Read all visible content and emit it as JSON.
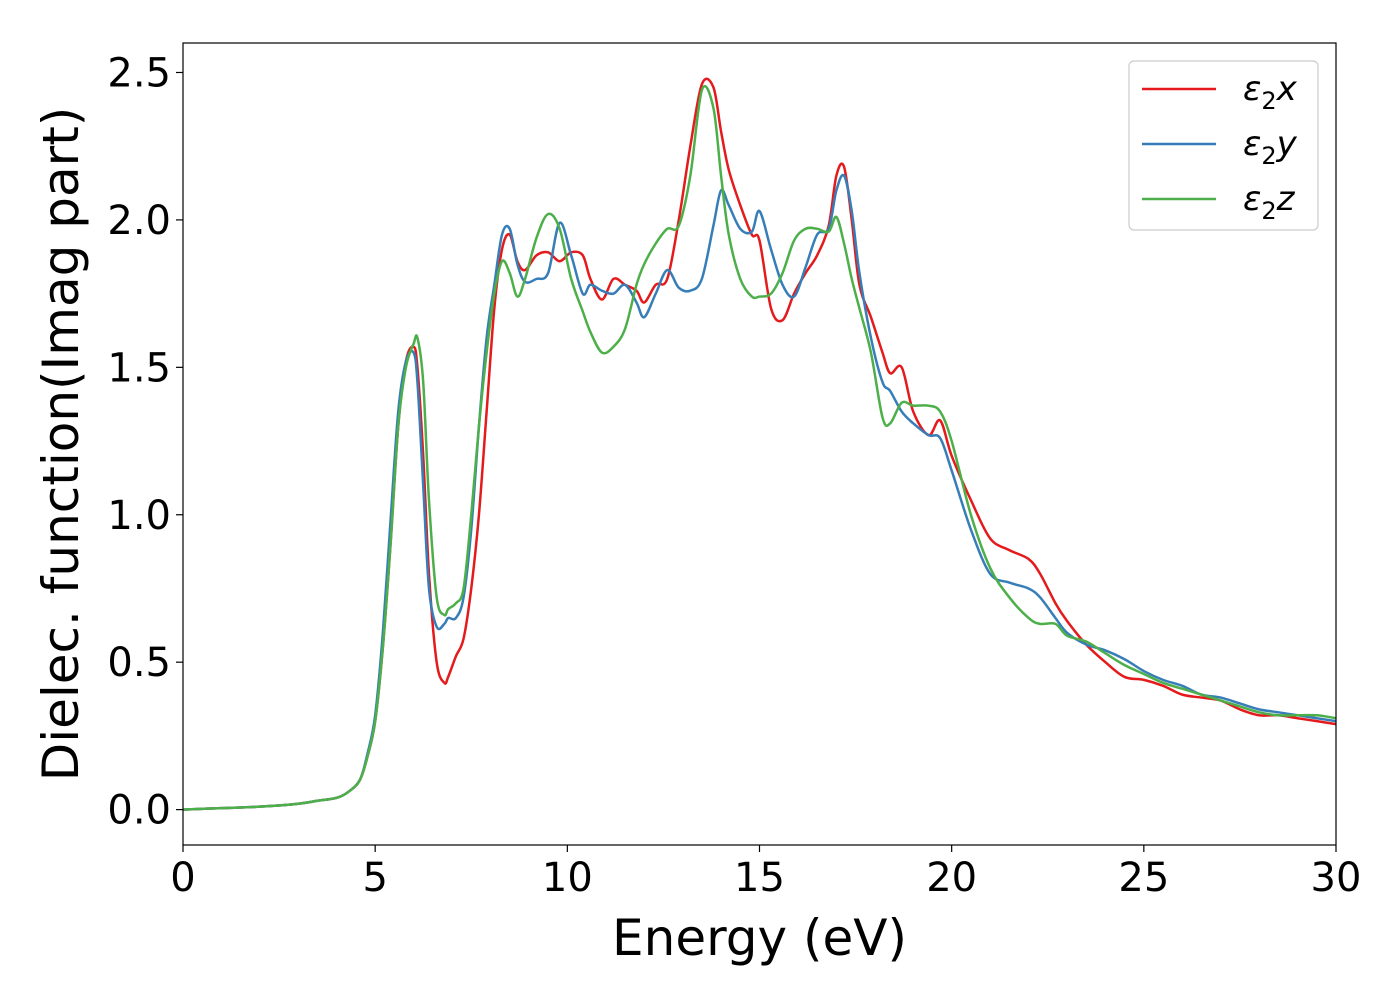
{
  "chart_data": {
    "type": "line",
    "title": "",
    "xlabel": "Energy (eV)",
    "ylabel": "Dielec. function(Imag part)",
    "xlim": [
      0,
      30
    ],
    "ylim": [
      -0.12,
      2.6
    ],
    "xticks": [
      0,
      5,
      10,
      15,
      20,
      25,
      30
    ],
    "yticks": [
      0.0,
      0.5,
      1.0,
      1.5,
      2.0,
      2.5
    ],
    "xtick_labels": [
      "0",
      "5",
      "10",
      "15",
      "20",
      "25",
      "30"
    ],
    "ytick_labels": [
      "0.0",
      "0.5",
      "1.0",
      "1.5",
      "2.0",
      "2.5"
    ],
    "grid": false,
    "legend_position": "top-right",
    "series": [
      {
        "name": "ε2x",
        "legend": {
          "base": "ε",
          "sub": "2",
          "suffix": "x"
        },
        "color": "#e41a1c",
        "x": [
          0,
          1,
          2,
          3,
          3.5,
          4,
          4.3,
          4.6,
          4.8,
          5,
          5.2,
          5.4,
          5.6,
          5.8,
          6,
          6.1,
          6.25,
          6.4,
          6.6,
          6.8,
          6.9,
          7.1,
          7.3,
          7.5,
          7.7,
          7.9,
          8.1,
          8.3,
          8.5,
          8.7,
          8.9,
          9.2,
          9.5,
          9.8,
          10.1,
          10.4,
          10.6,
          10.9,
          11.2,
          11.5,
          11.8,
          12,
          12.3,
          12.6,
          12.9,
          13.2,
          13.5,
          13.8,
          14,
          14.2,
          14.5,
          14.8,
          15,
          15.3,
          15.6,
          15.9,
          16.2,
          16.5,
          16.8,
          17,
          17.2,
          17.4,
          17.6,
          17.9,
          18.2,
          18.4,
          18.7,
          19,
          19.4,
          19.7,
          20,
          20.5,
          21,
          21.5,
          22,
          22.3,
          22.7,
          23,
          23.5,
          24,
          24.5,
          25,
          25.5,
          26,
          26.5,
          27,
          27.5,
          28,
          28.5,
          29,
          29.5,
          30
        ],
        "y": [
          0.0,
          0.005,
          0.01,
          0.02,
          0.03,
          0.04,
          0.06,
          0.1,
          0.18,
          0.3,
          0.55,
          0.9,
          1.3,
          1.52,
          1.57,
          1.5,
          1.2,
          0.8,
          0.5,
          0.43,
          0.45,
          0.52,
          0.58,
          0.75,
          1.0,
          1.35,
          1.7,
          1.9,
          1.95,
          1.86,
          1.83,
          1.88,
          1.89,
          1.86,
          1.89,
          1.88,
          1.8,
          1.73,
          1.8,
          1.78,
          1.76,
          1.72,
          1.78,
          1.8,
          2.0,
          2.25,
          2.46,
          2.45,
          2.3,
          2.17,
          2.05,
          1.95,
          1.93,
          1.7,
          1.66,
          1.75,
          1.82,
          1.88,
          1.98,
          2.15,
          2.18,
          2.0,
          1.78,
          1.67,
          1.55,
          1.48,
          1.5,
          1.35,
          1.27,
          1.32,
          1.2,
          1.05,
          0.92,
          0.88,
          0.85,
          0.8,
          0.7,
          0.64,
          0.56,
          0.5,
          0.45,
          0.44,
          0.42,
          0.39,
          0.38,
          0.37,
          0.34,
          0.32,
          0.32,
          0.31,
          0.3,
          0.29
        ]
      },
      {
        "name": "ε2y",
        "legend": {
          "base": "ε",
          "sub": "2",
          "suffix": "y"
        },
        "color": "#377eb8",
        "x": [
          0,
          1,
          2,
          3,
          3.5,
          4,
          4.3,
          4.6,
          4.8,
          5,
          5.2,
          5.4,
          5.6,
          5.8,
          6,
          6.1,
          6.25,
          6.4,
          6.6,
          6.8,
          6.9,
          7.1,
          7.3,
          7.5,
          7.7,
          7.9,
          8.1,
          8.3,
          8.5,
          8.7,
          8.9,
          9.2,
          9.5,
          9.8,
          10.1,
          10.4,
          10.6,
          10.9,
          11.2,
          11.5,
          11.8,
          12,
          12.3,
          12.6,
          12.9,
          13.2,
          13.5,
          13.8,
          14,
          14.2,
          14.5,
          14.8,
          15,
          15.3,
          15.6,
          15.9,
          16.2,
          16.5,
          16.8,
          17,
          17.2,
          17.4,
          17.6,
          17.9,
          18.2,
          18.4,
          18.7,
          19,
          19.4,
          19.7,
          20,
          20.5,
          21,
          21.5,
          22,
          22.3,
          22.7,
          23,
          23.5,
          24,
          24.5,
          25,
          25.5,
          26,
          26.5,
          27,
          27.5,
          28,
          28.5,
          29,
          29.5,
          30
        ],
        "y": [
          0.0,
          0.005,
          0.01,
          0.02,
          0.03,
          0.04,
          0.06,
          0.1,
          0.19,
          0.32,
          0.6,
          0.98,
          1.35,
          1.52,
          1.55,
          1.45,
          1.1,
          0.75,
          0.62,
          0.63,
          0.65,
          0.65,
          0.72,
          0.95,
          1.3,
          1.6,
          1.78,
          1.95,
          1.97,
          1.85,
          1.79,
          1.8,
          1.82,
          1.99,
          1.88,
          1.75,
          1.78,
          1.76,
          1.75,
          1.78,
          1.72,
          1.67,
          1.75,
          1.83,
          1.77,
          1.76,
          1.8,
          1.98,
          2.1,
          2.05,
          1.97,
          1.96,
          2.03,
          1.9,
          1.78,
          1.74,
          1.84,
          1.95,
          1.97,
          2.1,
          2.15,
          2.03,
          1.82,
          1.6,
          1.45,
          1.42,
          1.35,
          1.31,
          1.27,
          1.26,
          1.15,
          0.95,
          0.8,
          0.77,
          0.75,
          0.72,
          0.65,
          0.6,
          0.56,
          0.54,
          0.51,
          0.47,
          0.44,
          0.42,
          0.39,
          0.38,
          0.36,
          0.34,
          0.33,
          0.32,
          0.31,
          0.3
        ]
      },
      {
        "name": "ε2z",
        "legend": {
          "base": "ε",
          "sub": "2",
          "suffix": "z"
        },
        "color": "#4daf4a",
        "x": [
          0,
          1,
          2,
          3,
          3.5,
          4,
          4.3,
          4.6,
          4.8,
          5,
          5.2,
          5.4,
          5.6,
          5.8,
          6,
          6.1,
          6.25,
          6.4,
          6.6,
          6.8,
          6.9,
          7.1,
          7.3,
          7.5,
          7.7,
          7.9,
          8.1,
          8.3,
          8.5,
          8.7,
          8.9,
          9.2,
          9.5,
          9.8,
          10.1,
          10.4,
          10.6,
          10.9,
          11.2,
          11.5,
          11.8,
          12,
          12.3,
          12.6,
          12.9,
          13.2,
          13.5,
          13.8,
          14,
          14.2,
          14.5,
          14.8,
          15,
          15.3,
          15.6,
          15.9,
          16.2,
          16.5,
          16.8,
          17,
          17.2,
          17.4,
          17.6,
          17.9,
          18.2,
          18.4,
          18.7,
          19,
          19.4,
          19.7,
          20,
          20.5,
          21,
          21.5,
          22,
          22.3,
          22.7,
          23,
          23.5,
          24,
          24.5,
          25,
          25.5,
          26,
          26.5,
          27,
          27.5,
          28,
          28.5,
          29,
          29.5,
          30
        ],
        "y": [
          0.0,
          0.005,
          0.01,
          0.02,
          0.03,
          0.04,
          0.06,
          0.1,
          0.18,
          0.3,
          0.55,
          0.9,
          1.3,
          1.5,
          1.58,
          1.6,
          1.45,
          1.05,
          0.72,
          0.66,
          0.68,
          0.7,
          0.75,
          1.0,
          1.3,
          1.55,
          1.75,
          1.86,
          1.82,
          1.74,
          1.8,
          1.94,
          2.02,
          1.97,
          1.8,
          1.69,
          1.62,
          1.55,
          1.57,
          1.63,
          1.78,
          1.85,
          1.92,
          1.97,
          1.98,
          2.15,
          2.44,
          2.38,
          2.15,
          1.95,
          1.8,
          1.74,
          1.74,
          1.75,
          1.82,
          1.93,
          1.97,
          1.97,
          1.96,
          2.01,
          1.92,
          1.8,
          1.7,
          1.55,
          1.33,
          1.31,
          1.38,
          1.37,
          1.37,
          1.35,
          1.25,
          1.0,
          0.82,
          0.72,
          0.65,
          0.63,
          0.63,
          0.59,
          0.57,
          0.53,
          0.49,
          0.46,
          0.43,
          0.41,
          0.39,
          0.37,
          0.35,
          0.33,
          0.32,
          0.32,
          0.32,
          0.31
        ]
      }
    ]
  }
}
